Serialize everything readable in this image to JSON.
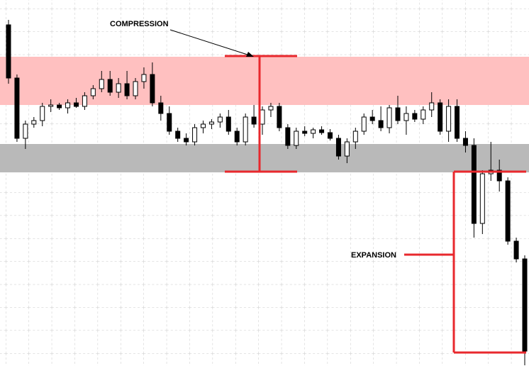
{
  "chart_data": {
    "type": "candlestick",
    "ylim": [
      0,
      516
    ],
    "open": [
      481,
      406,
      321,
      341,
      346,
      366,
      368,
      364,
      371,
      366,
      381,
      391,
      404,
      386,
      398,
      381,
      401,
      411,
      371,
      356,
      331,
      321,
      316,
      336,
      341,
      344,
      351,
      331,
      316,
      351,
      341,
      361,
      366,
      336,
      311,
      331,
      328,
      333,
      329,
      321,
      296,
      316,
      331,
      351,
      346,
      336,
      364,
      346,
      356,
      348,
      361,
      371,
      331,
      366,
      321,
      311,
      201,
      271,
      276,
      261,
      176,
      151
    ],
    "high": [
      488,
      411,
      346,
      351,
      371,
      376,
      371,
      376,
      378,
      386,
      396,
      416,
      416,
      406,
      416,
      406,
      421,
      428,
      381,
      366,
      336,
      328,
      341,
      346,
      348,
      356,
      361,
      336,
      356,
      368,
      366,
      371,
      371,
      341,
      336,
      338,
      336,
      338,
      334,
      326,
      321,
      336,
      356,
      361,
      366,
      368,
      381,
      366,
      361,
      366,
      386,
      376,
      376,
      376,
      331,
      321,
      276,
      316,
      291,
      266,
      181,
      156
    ],
    "low": [
      398,
      316,
      306,
      336,
      338,
      358,
      361,
      356,
      364,
      361,
      376,
      386,
      381,
      378,
      376,
      376,
      391,
      366,
      346,
      326,
      316,
      311,
      311,
      328,
      334,
      336,
      326,
      311,
      311,
      336,
      326,
      351,
      331,
      306,
      306,
      324,
      321,
      326,
      318,
      291,
      286,
      306,
      326,
      341,
      331,
      328,
      341,
      326,
      344,
      341,
      351,
      326,
      316,
      316,
      301,
      181,
      186,
      261,
      246,
      171,
      146,
      1
    ],
    "close": [
      406,
      321,
      341,
      346,
      366,
      368,
      364,
      371,
      366,
      381,
      391,
      404,
      386,
      398,
      381,
      401,
      411,
      371,
      356,
      331,
      321,
      316,
      336,
      341,
      344,
      351,
      331,
      316,
      351,
      341,
      361,
      366,
      336,
      311,
      331,
      328,
      333,
      329,
      321,
      296,
      316,
      331,
      351,
      346,
      336,
      364,
      346,
      356,
      348,
      361,
      371,
      331,
      366,
      321,
      311,
      201,
      271,
      276,
      261,
      176,
      151,
      21
    ],
    "up_color": "#ffffff",
    "down_color": "#000000",
    "zones": [
      {
        "from": 368,
        "to": 436,
        "color": "#ffc0c0"
      },
      {
        "from": 273,
        "to": 313,
        "color": "#b9b9b9"
      }
    ],
    "annotations": [
      "COMPRESSION",
      "EXPANSION"
    ]
  }
}
